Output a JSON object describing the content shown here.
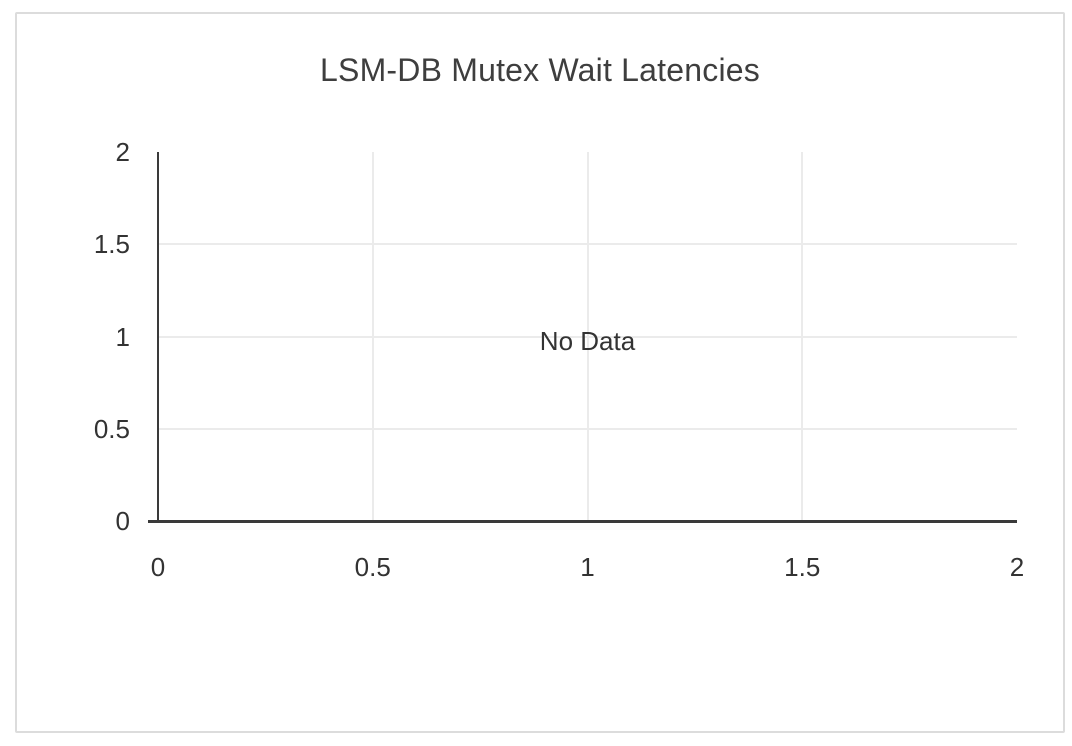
{
  "card": {
    "background": "#ffffff",
    "border_color": "#dcdcdc"
  },
  "chart_data": {
    "type": "line",
    "title": "LSM-DB Mutex Wait Latencies",
    "series": [],
    "no_data_label": "No Data",
    "xlabel": "",
    "ylabel": "",
    "x_axis": {
      "min": 0,
      "max": 2,
      "ticks": [
        0,
        0.5,
        1,
        1.5,
        2
      ],
      "tick_labels": [
        "0",
        "0.5",
        "1",
        "1.5",
        "2"
      ]
    },
    "y_axis": {
      "min": 0,
      "max": 2,
      "ticks": [
        0,
        0.5,
        1,
        1.5,
        2
      ],
      "tick_labels": [
        "0",
        "0.5",
        "1",
        "1.5",
        "2"
      ]
    },
    "grid": true,
    "gridline_values": [
      0.5,
      1,
      1.5
    ],
    "legend": false,
    "colors": {
      "title": "#3e3e3e",
      "tick_label": "#333333",
      "axis_line": "#3a3a3a",
      "gridline": "#ebebeb",
      "no_data_text": "#333333",
      "card_border": "#dcdcdc",
      "background": "#ffffff"
    }
  }
}
